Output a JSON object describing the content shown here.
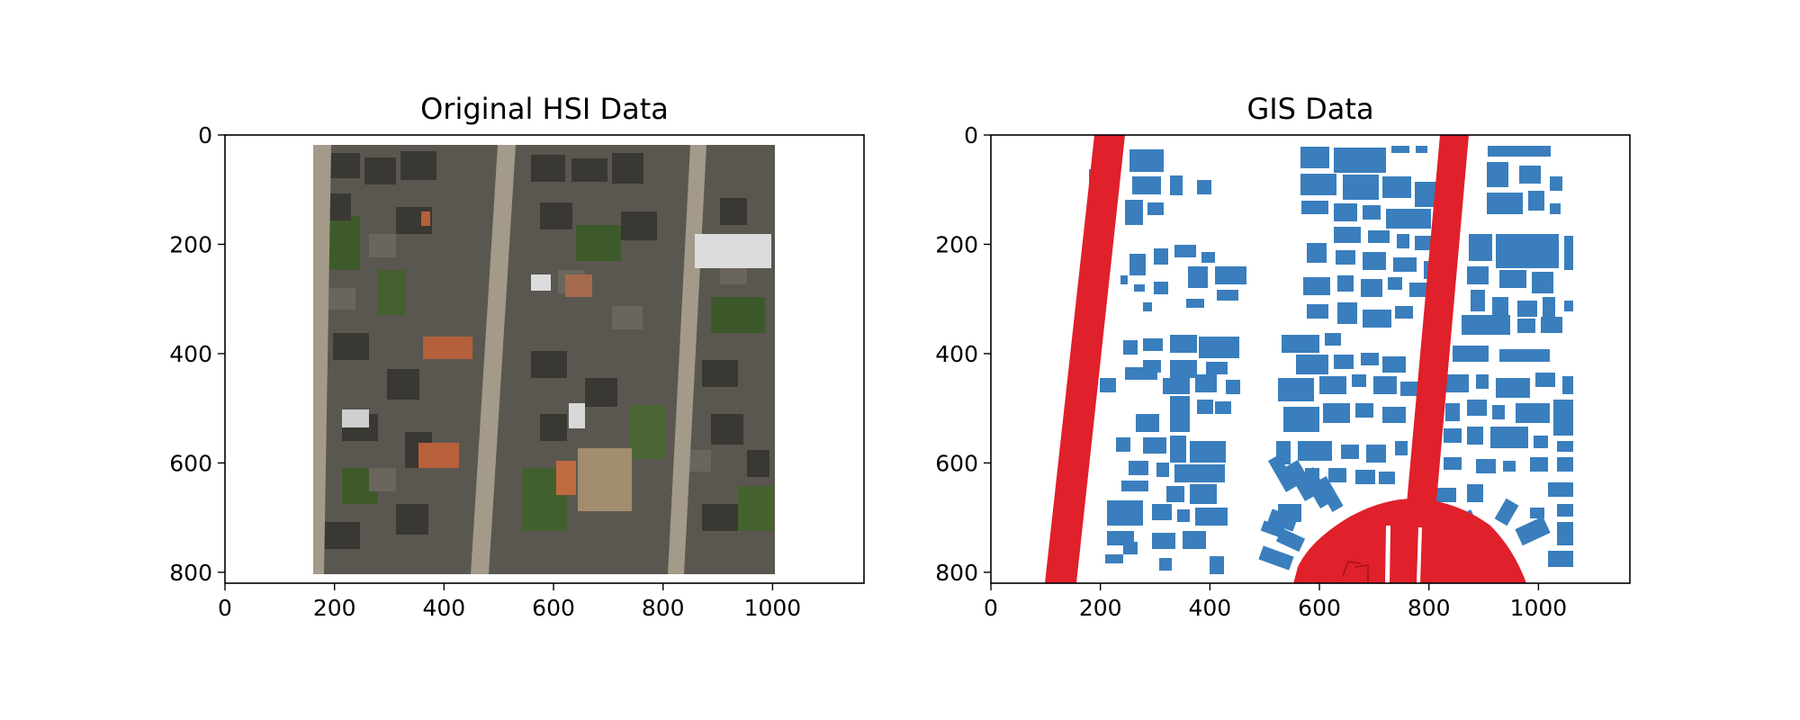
{
  "panels": [
    {
      "id": "hsi",
      "title": "Original HSI Data",
      "x_ticks": [
        "0",
        "200",
        "400",
        "600",
        "800",
        "1000"
      ],
      "y_ticks": [
        "0",
        "200",
        "400",
        "600",
        "800"
      ],
      "x_range": [
        0,
        1167
      ],
      "y_range": [
        820,
        0
      ]
    },
    {
      "id": "gis",
      "title": "GIS Data",
      "x_ticks": [
        "0",
        "200",
        "400",
        "600",
        "800",
        "1000"
      ],
      "y_ticks": [
        "0",
        "200",
        "400",
        "600",
        "800"
      ],
      "x_range": [
        0,
        1167
      ],
      "y_range": [
        820,
        0
      ]
    }
  ],
  "colors": {
    "building": "#3a7ebd",
    "road": "#e0202a",
    "roof_dark": "#4f4c45",
    "vegetation": "#3f5a2a",
    "street": "#a39a8a",
    "frame": "#000000"
  }
}
